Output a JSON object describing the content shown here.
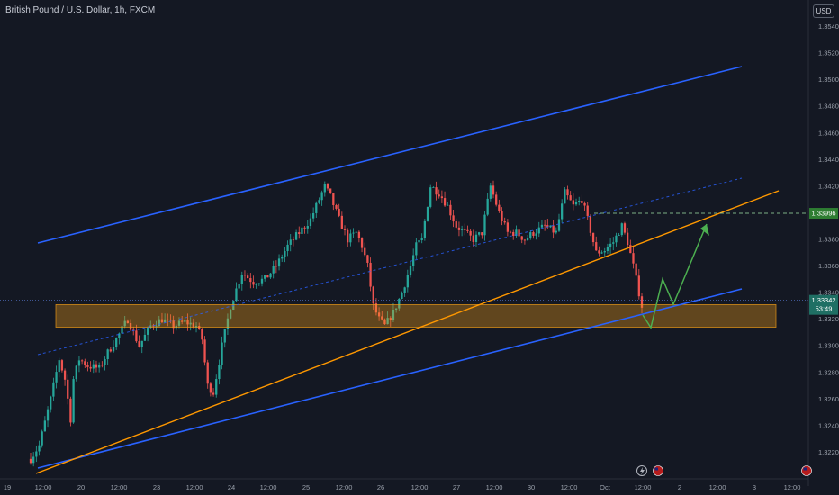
{
  "header": {
    "title": "British Pound / U.S. Dollar, 1h, FXCM",
    "currency": "USD"
  },
  "chart_data": {
    "type": "candlestick",
    "yaxis": {
      "min": 1.3208,
      "max": 1.3554,
      "ticks": [
        "1.35400",
        "1.35200",
        "1.35000",
        "1.34800",
        "1.34600",
        "1.34400",
        "1.34200",
        "1.33800",
        "1.33600",
        "1.33400",
        "1.33200",
        "1.33000",
        "1.32800",
        "1.32600",
        "1.32400",
        "1.32200"
      ]
    },
    "xaxis": {
      "labels": [
        "19",
        "12:00",
        "20",
        "12:00",
        "23",
        "12:00",
        "24",
        "12:00",
        "25",
        "12:00",
        "26",
        "12:00",
        "27",
        "12:00",
        "30",
        "12:00",
        "Oct",
        "12:00",
        "2",
        "12:00",
        "3",
        "12:00"
      ]
    },
    "price_labels": {
      "target": {
        "value": 1.33996,
        "text": "1.33996"
      },
      "current": {
        "value": 1.33342,
        "text": "1.33342",
        "countdown": "53:49"
      }
    },
    "zones": [
      {
        "name": "support-zone",
        "low": 1.3314,
        "high": 1.3331,
        "color": "#f29d17"
      }
    ],
    "colors": {
      "up": "#26a69a",
      "down": "#ef5350",
      "channel": "#2962ff",
      "trend": "#ff9800",
      "projection": "#4caf50"
    }
  }
}
